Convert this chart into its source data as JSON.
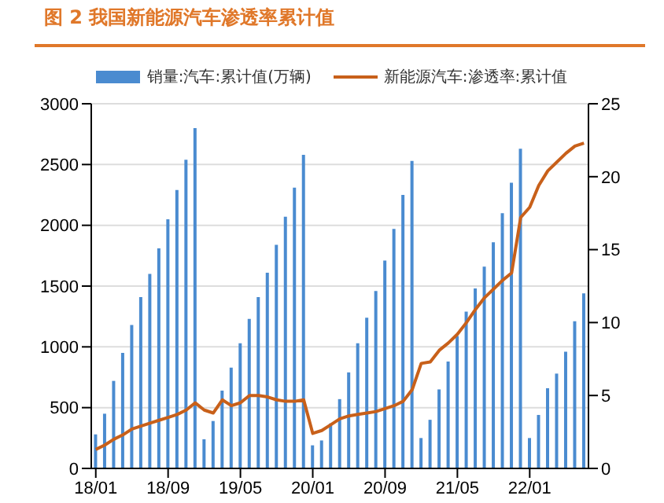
{
  "chart_data": {
    "type": "bar",
    "title": "图 2 我国新能源汽车渗透率累计值",
    "categories": [
      "18/01",
      null,
      null,
      null,
      null,
      null,
      null,
      null,
      "18/09",
      null,
      null,
      null,
      null,
      null,
      null,
      null,
      "19/05",
      null,
      null,
      null,
      null,
      null,
      null,
      null,
      "20/01",
      null,
      null,
      null,
      null,
      null,
      null,
      null,
      "20/09",
      null,
      null,
      null,
      null,
      null,
      null,
      null,
      "21/05",
      null,
      null,
      null,
      null,
      null,
      null,
      null,
      "22/01",
      null,
      null,
      null,
      null,
      null,
      null
    ],
    "series": [
      {
        "name": "销量:汽车:累计值(万辆)",
        "color": "#4a8bd0",
        "values": [
          280,
          450,
          720,
          950,
          1180,
          1410,
          1600,
          1810,
          2050,
          2290,
          2540,
          2800,
          240,
          390,
          640,
          830,
          1030,
          1230,
          1410,
          1610,
          1840,
          2070,
          2310,
          2580,
          190,
          230,
          370,
          570,
          790,
          1030,
          1240,
          1460,
          1710,
          1970,
          2250,
          2530,
          250,
          400,
          650,
          880,
          1090,
          1290,
          1480,
          1660,
          1860,
          2100,
          2350,
          2630,
          250,
          440,
          660,
          780,
          960,
          1210,
          1440
        ]
      },
      {
        "name": "新能源汽车:渗透率:累计值",
        "type": "line",
        "axis": "y2",
        "color": "#c8601a",
        "values": [
          1.3,
          1.6,
          2.0,
          2.3,
          2.7,
          2.9,
          3.1,
          3.3,
          3.5,
          3.7,
          4.0,
          4.5,
          4.0,
          3.8,
          4.7,
          4.3,
          4.5,
          5.0,
          5.0,
          4.9,
          4.7,
          4.6,
          4.6,
          4.7,
          2.4,
          2.6,
          3.0,
          3.4,
          3.6,
          3.7,
          3.8,
          3.9,
          4.1,
          4.3,
          4.6,
          5.4,
          7.2,
          7.3,
          8.1,
          8.6,
          9.2,
          10.0,
          10.9,
          11.7,
          12.3,
          12.9,
          13.4,
          17.2,
          17.9,
          19.4,
          20.4,
          21.0,
          21.6,
          22.1,
          22.3
        ]
      }
    ],
    "ylim": [
      0,
      3000
    ],
    "yticks": [
      0,
      500,
      1000,
      1500,
      2000,
      2500,
      3000
    ],
    "y2lim": [
      0,
      25
    ],
    "y2ticks": [
      0,
      5,
      10,
      15,
      20,
      25
    ],
    "grid": "y",
    "legend": "top",
    "marker": "none",
    "line_style": "solid"
  }
}
